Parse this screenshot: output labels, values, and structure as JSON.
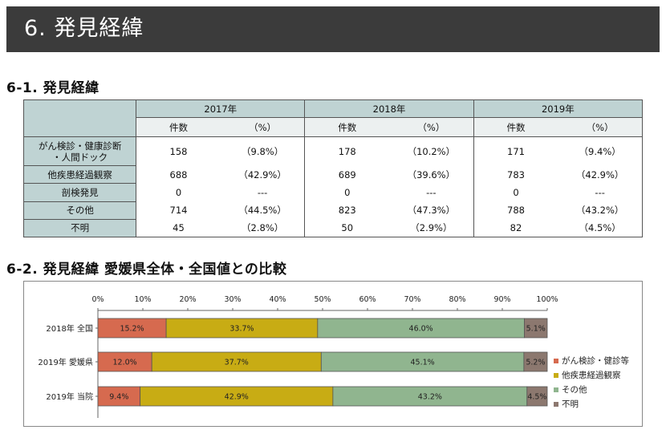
{
  "banner": {
    "title": "6. 発見経緯"
  },
  "section1": {
    "title": "6-1. 発見経緯"
  },
  "table": {
    "years": [
      "2017年",
      "2018年",
      "2019年"
    ],
    "sub_headers": {
      "count": "件数",
      "pct": "（%）"
    },
    "rows": [
      {
        "label": "がん検診・健康診断\n・人間ドック",
        "values": [
          [
            "158",
            "（9.8%）"
          ],
          [
            "178",
            "（10.2%）"
          ],
          [
            "171",
            "（9.4%）"
          ]
        ]
      },
      {
        "label": "他疾患経過観察",
        "values": [
          [
            "688",
            "（42.9%）"
          ],
          [
            "689",
            "（39.6%）"
          ],
          [
            "783",
            "（42.9%）"
          ]
        ]
      },
      {
        "label": "剖検発見",
        "values": [
          [
            "0",
            "---"
          ],
          [
            "0",
            "---"
          ],
          [
            "0",
            "---"
          ]
        ]
      },
      {
        "label": "その他",
        "values": [
          [
            "714",
            "（44.5%）"
          ],
          [
            "823",
            "（47.3%）"
          ],
          [
            "788",
            "（43.2%）"
          ]
        ]
      },
      {
        "label": "不明",
        "values": [
          [
            "45",
            "（2.8%）"
          ],
          [
            "50",
            "（2.9%）"
          ],
          [
            "82",
            "（4.5%）"
          ]
        ]
      }
    ]
  },
  "section2": {
    "title": "6-2. 発見経緯 愛媛県全体・全国値との比較"
  },
  "chart_data": {
    "type": "bar",
    "orientation": "horizontal",
    "stacked": true,
    "normalized": true,
    "categories": [
      "2018年 全国",
      "2019年 愛媛県",
      "2019年 当院"
    ],
    "series": [
      {
        "name": "がん検診・健診等",
        "color": "#d66a4f",
        "values": [
          15.2,
          12.0,
          9.4
        ]
      },
      {
        "name": "他疾患経過観察",
        "color": "#c8ac14",
        "values": [
          33.7,
          37.7,
          42.9
        ]
      },
      {
        "name": "その他",
        "color": "#90b58f",
        "values": [
          46.0,
          45.1,
          43.2
        ]
      },
      {
        "name": "不明",
        "color": "#8c786f",
        "values": [
          5.1,
          5.2,
          4.5
        ]
      }
    ],
    "xlim": [
      0,
      100
    ],
    "x_ticks": [
      "0%",
      "10%",
      "20%",
      "30%",
      "40%",
      "50%",
      "60%",
      "70%",
      "80%",
      "90%",
      "100%"
    ],
    "legend_position": "bottom-right",
    "grid": false
  }
}
